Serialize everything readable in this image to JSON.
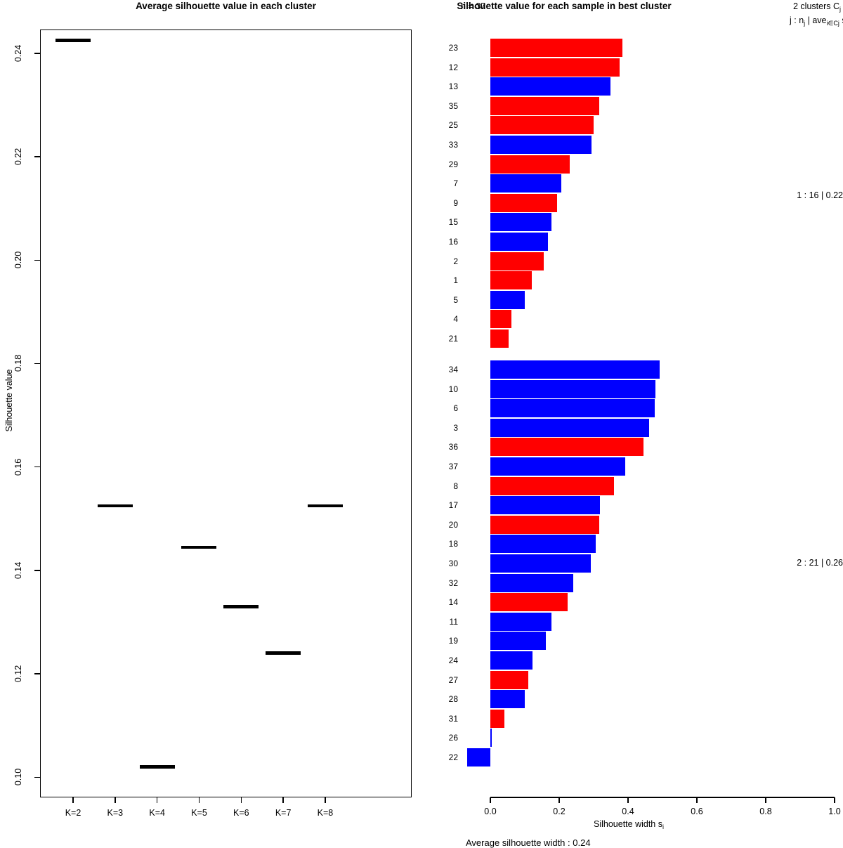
{
  "palette": {
    "red": "#ff0000",
    "blue": "#0000ff",
    "black": "#000000"
  },
  "chart_data": [
    {
      "type": "scatter",
      "marker": "horizontal-dash",
      "title": "Average silhouette value in each cluster",
      "xlabel": "",
      "ylabel": "Silhouette value",
      "categories": [
        "K=2",
        "K=3",
        "K=4",
        "K=5",
        "K=6",
        "K=7",
        "K=8"
      ],
      "values": [
        0.2425,
        0.1525,
        0.102,
        0.1445,
        0.133,
        0.124,
        0.1525
      ],
      "ylim": [
        0.0961,
        0.2446
      ],
      "yticks": [
        "0.10",
        "0.12",
        "0.14",
        "0.16",
        "0.18",
        "0.20",
        "0.22",
        "0.24"
      ],
      "grid": false
    },
    {
      "type": "bar",
      "orientation": "horizontal",
      "title": "Silhouette value for each sample in best cluster",
      "n_label": "n = 37",
      "header_right": {
        "line1_pre": "2  clusters  C",
        "line1_sub": "j",
        "line2_pre": "j :  n",
        "line2_sub1": "j",
        "line2_mid": " | ave",
        "line2_sub2": "i∈Cj",
        "line2_end": "  s",
        "line2_sub3": "i"
      },
      "xlabel_pre": "Silhouette width s",
      "xlabel_sub": "i",
      "xlim": [
        0.0,
        1.0
      ],
      "xticks": [
        "0.0",
        "0.2",
        "0.4",
        "0.6",
        "0.8",
        "1.0"
      ],
      "footer": "Average silhouette width : 0.24",
      "clusters": [
        {
          "label": "1 :  16 | 0.22",
          "samples": [
            {
              "id": "23",
              "color": "red",
              "value": 0.384
            },
            {
              "id": "12",
              "color": "red",
              "value": 0.375
            },
            {
              "id": "13",
              "color": "blue",
              "value": 0.349
            },
            {
              "id": "35",
              "color": "red",
              "value": 0.316
            },
            {
              "id": "25",
              "color": "red",
              "value": 0.3
            },
            {
              "id": "33",
              "color": "blue",
              "value": 0.294
            },
            {
              "id": "29",
              "color": "red",
              "value": 0.23
            },
            {
              "id": "7",
              "color": "blue",
              "value": 0.207
            },
            {
              "id": "9",
              "color": "red",
              "value": 0.193
            },
            {
              "id": "15",
              "color": "blue",
              "value": 0.178
            },
            {
              "id": "16",
              "color": "blue",
              "value": 0.168
            },
            {
              "id": "2",
              "color": "red",
              "value": 0.156
            },
            {
              "id": "1",
              "color": "red",
              "value": 0.121
            },
            {
              "id": "5",
              "color": "blue",
              "value": 0.099
            },
            {
              "id": "4",
              "color": "red",
              "value": 0.062
            },
            {
              "id": "21",
              "color": "red",
              "value": 0.053
            }
          ]
        },
        {
          "label": "2 :  21 | 0.26",
          "samples": [
            {
              "id": "34",
              "color": "blue",
              "value": 0.491
            },
            {
              "id": "10",
              "color": "blue",
              "value": 0.48
            },
            {
              "id": "6",
              "color": "blue",
              "value": 0.477
            },
            {
              "id": "3",
              "color": "blue",
              "value": 0.461
            },
            {
              "id": "36",
              "color": "red",
              "value": 0.444
            },
            {
              "id": "37",
              "color": "blue",
              "value": 0.391
            },
            {
              "id": "8",
              "color": "red",
              "value": 0.36
            },
            {
              "id": "17",
              "color": "blue",
              "value": 0.319
            },
            {
              "id": "20",
              "color": "red",
              "value": 0.317
            },
            {
              "id": "18",
              "color": "blue",
              "value": 0.306
            },
            {
              "id": "30",
              "color": "blue",
              "value": 0.292
            },
            {
              "id": "32",
              "color": "blue",
              "value": 0.241
            },
            {
              "id": "14",
              "color": "red",
              "value": 0.225
            },
            {
              "id": "11",
              "color": "blue",
              "value": 0.178
            },
            {
              "id": "19",
              "color": "blue",
              "value": 0.162
            },
            {
              "id": "24",
              "color": "blue",
              "value": 0.123
            },
            {
              "id": "27",
              "color": "red",
              "value": 0.111
            },
            {
              "id": "28",
              "color": "blue",
              "value": 0.101
            },
            {
              "id": "31",
              "color": "red",
              "value": 0.04
            },
            {
              "id": "26",
              "color": "blue",
              "value": 0.005
            },
            {
              "id": "22",
              "color": "blue",
              "value": -0.068
            }
          ]
        }
      ]
    }
  ]
}
